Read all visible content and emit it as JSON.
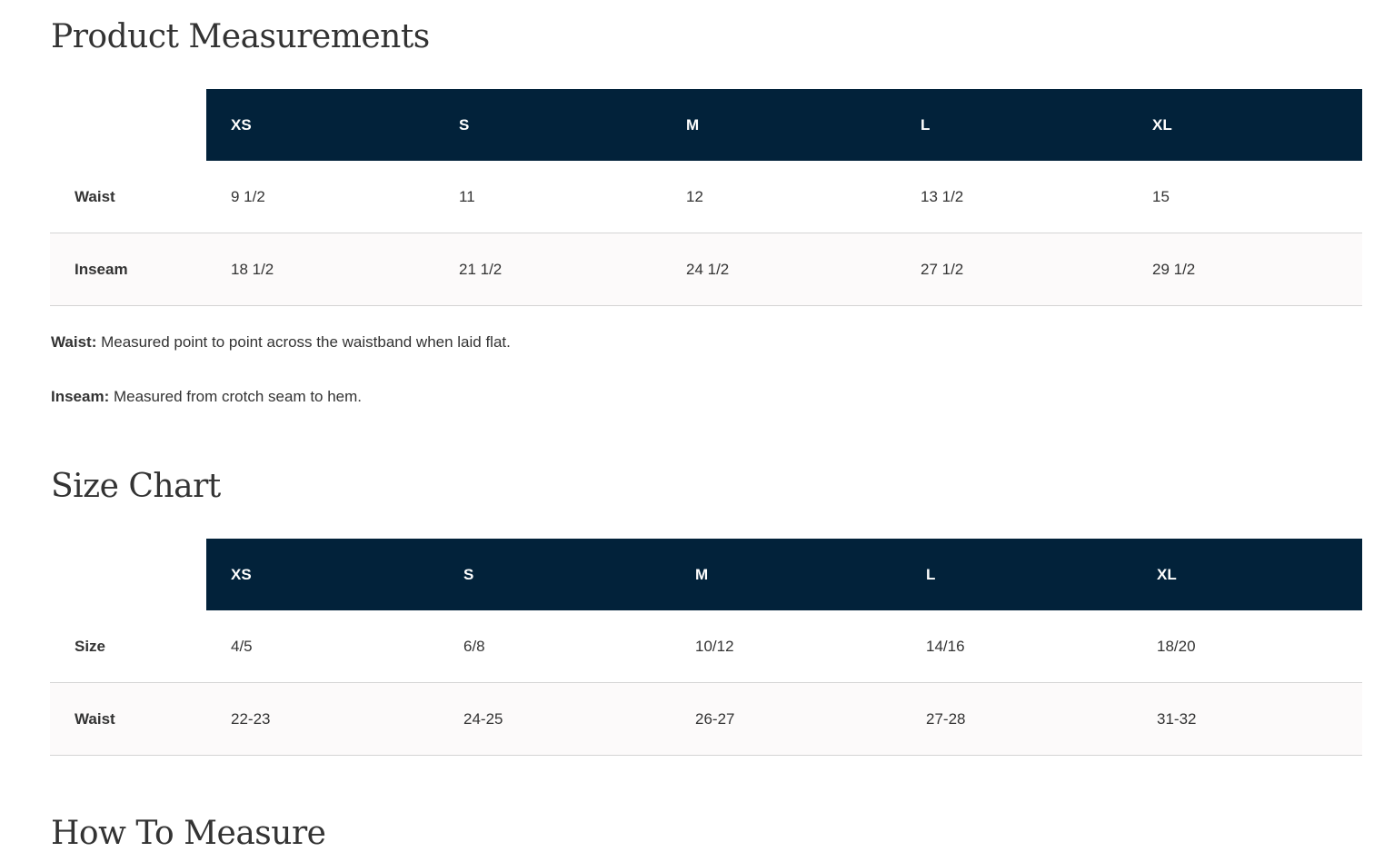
{
  "measurements": {
    "title": "Product Measurements",
    "sizes": [
      "XS",
      "S",
      "M",
      "L",
      "XL"
    ],
    "rows": [
      {
        "label": "Waist",
        "values": [
          "9 1/2",
          "11",
          "12",
          "13 1/2",
          "15"
        ]
      },
      {
        "label": "Inseam",
        "values": [
          "18 1/2",
          "21 1/2",
          "24 1/2",
          "27 1/2",
          "29 1/2"
        ]
      }
    ],
    "notes": [
      {
        "term": "Waist:",
        "text": " Measured point to point across the waistband when laid flat."
      },
      {
        "term": "Inseam:",
        "text": " Measured from crotch seam to hem."
      }
    ]
  },
  "size_chart": {
    "title": "Size Chart",
    "sizes": [
      "XS",
      "S",
      "M",
      "L",
      "XL"
    ],
    "rows": [
      {
        "label": "Size",
        "values": [
          "4/5",
          "6/8",
          "10/12",
          "14/16",
          "18/20"
        ]
      },
      {
        "label": "Waist",
        "values": [
          "22-23",
          "24-25",
          "26-27",
          "27-28",
          "31-32"
        ]
      }
    ]
  },
  "how_to_measure": {
    "title": "How To Measure"
  },
  "colors": {
    "header_bg": "#02223a",
    "alt_row_bg": "#fcfafa",
    "text": "#333333"
  }
}
